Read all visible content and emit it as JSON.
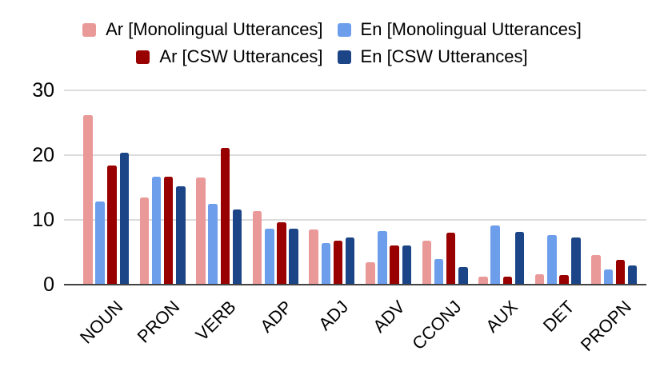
{
  "colors": {
    "background": "#ffffff",
    "gridline": "#dcdcdc",
    "axis_line": "#424242",
    "text": "#000000"
  },
  "chart_data": {
    "type": "bar",
    "title": "",
    "xlabel": "",
    "ylabel": "",
    "categories": [
      "NOUN",
      "PRON",
      "VERB",
      "ADP",
      "ADJ",
      "ADV",
      "CCONJ",
      "AUX",
      "DET",
      "PROPN"
    ],
    "series": [
      {
        "name": "Ar [Monolingual Utterances]",
        "color": "#ea9999",
        "values": [
          26.2,
          13.4,
          16.5,
          11.4,
          8.5,
          3.5,
          6.8,
          1.2,
          1.6,
          4.6
        ]
      },
      {
        "name": "En [Monolingual Utterances]",
        "color": "#6d9eeb",
        "values": [
          12.8,
          16.6,
          12.5,
          8.6,
          6.4,
          8.3,
          3.9,
          9.1,
          7.6,
          2.4
        ]
      },
      {
        "name": "Ar [CSW Utterances]",
        "color": "#990000",
        "values": [
          18.4,
          16.6,
          21.1,
          9.6,
          6.8,
          6.0,
          8.0,
          1.2,
          1.5,
          3.8
        ]
      },
      {
        "name": "En [CSW Utterances]",
        "color": "#1c4587",
        "values": [
          20.3,
          15.2,
          11.6,
          8.6,
          7.3,
          6.1,
          2.7,
          8.1,
          7.3,
          3.0
        ]
      }
    ],
    "y_ticks": [
      0,
      10,
      20,
      30
    ],
    "y_tick_labels": [
      "0",
      "10",
      "20",
      "30"
    ],
    "ylim": [
      0,
      30
    ],
    "grid": true,
    "legend_position": "top",
    "legend_layout": "two-column-two-row"
  }
}
